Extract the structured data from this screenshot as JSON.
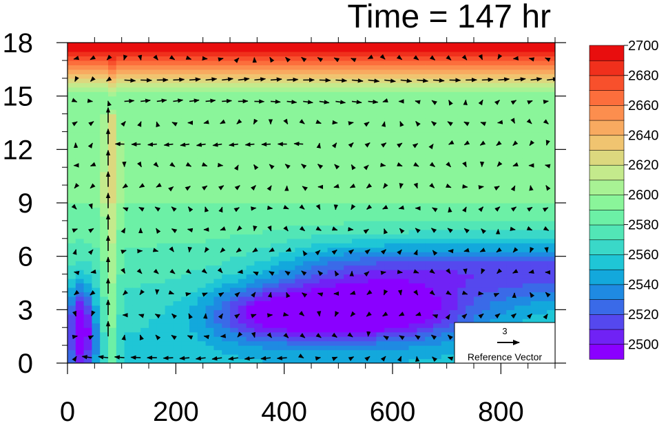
{
  "chart_data": {
    "type": "heatmap",
    "title": "Time = 147 hr",
    "xlim": [
      0,
      900
    ],
    "ylim": [
      0,
      18
    ],
    "x_ticks": [
      0,
      200,
      400,
      600,
      800
    ],
    "y_ticks": [
      0,
      3,
      6,
      9,
      12,
      15,
      18
    ],
    "x_tick_labels": [
      "0",
      "200",
      "400",
      "600",
      "800"
    ],
    "y_tick_labels": [
      "0",
      "3",
      "6",
      "9",
      "12",
      "15",
      "18"
    ],
    "colorbar": {
      "levels": [
        2500,
        2510,
        2520,
        2530,
        2540,
        2550,
        2560,
        2570,
        2580,
        2590,
        2600,
        2610,
        2620,
        2630,
        2640,
        2650,
        2660,
        2670,
        2680,
        2690,
        2700
      ],
      "labels": [
        "2500",
        "2520",
        "2540",
        "2560",
        "2580",
        "2600",
        "2620",
        "2640",
        "2660",
        "2680",
        "2700"
      ],
      "colors": [
        "#8a00ff",
        "#7022f5",
        "#5548ee",
        "#3a6ae8",
        "#1f8ae2",
        "#13a8dc",
        "#1fc6d6",
        "#3ad8c8",
        "#52e6b6",
        "#6cf0a6",
        "#8af59a",
        "#a8f294",
        "#c4ea8c",
        "#dcd87e",
        "#f0c470",
        "#f8aa60",
        "#fc8e4e",
        "#fc6e3c",
        "#f8502c",
        "#f0301c",
        "#e80e0e"
      ]
    },
    "reference_vector": {
      "magnitude": "3",
      "label": "Reference Vector"
    },
    "field_notes": "Vertical bands: 2700 near top (17-18), 2600-2620 mid levels, 2500-2520 minimum near 350-600 x at 2-4, updraft column near x=80"
  }
}
